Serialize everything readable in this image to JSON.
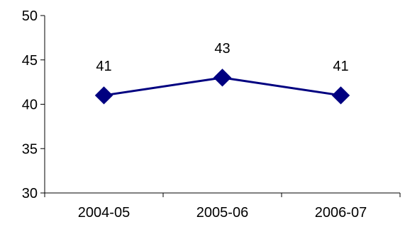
{
  "chart_data": {
    "type": "line",
    "title": "",
    "xlabel": "",
    "ylabel": "",
    "categories": [
      "2004-05",
      "2005-06",
      "2006-07"
    ],
    "series": [
      {
        "values": [
          41,
          43,
          41
        ],
        "data_labels": [
          "41",
          "43",
          "41"
        ]
      }
    ],
    "ylim": [
      30,
      50
    ],
    "yticks": [
      30,
      35,
      40,
      45,
      50
    ],
    "ytick_labels": [
      "30",
      "35",
      "40",
      "45",
      "50"
    ],
    "grid": false,
    "legend": "none",
    "marker": "diamond",
    "line_color": "#000080",
    "marker_color": "#000080"
  }
}
